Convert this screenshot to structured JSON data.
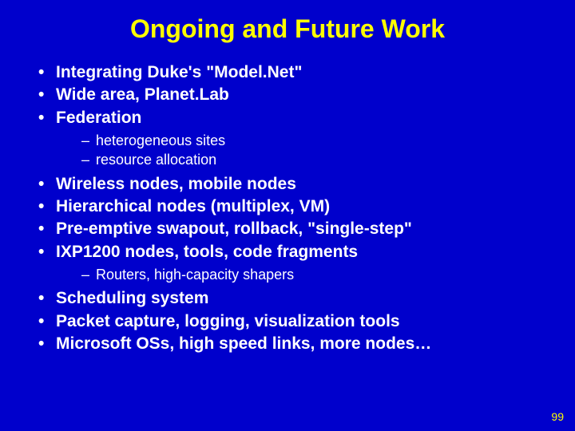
{
  "colors": {
    "background": "#0000cc",
    "title": "#ffff00",
    "body_text": "#ffffff",
    "page_number": "#ffff00"
  },
  "typography": {
    "title_fontsize": 32,
    "title_weight": "bold",
    "level1_fontsize": 21,
    "level1_weight": "bold",
    "level2_fontsize": 18,
    "level2_weight": "normal",
    "pagenum_fontsize": 14,
    "font_family": "Arial"
  },
  "bullets": {
    "level1_char": "•",
    "level2_char": "–"
  },
  "title": "Ongoing and Future Work",
  "items": {
    "i0": "Integrating Duke's \"Model.Net\"",
    "i1": "Wide area, Planet.Lab",
    "i2": "Federation",
    "i2_sub": {
      "s0": "heterogeneous sites",
      "s1": "resource allocation"
    },
    "i3": "Wireless nodes, mobile nodes",
    "i4": "Hierarchical nodes (multiplex, VM)",
    "i5": "Pre-emptive swapout, rollback, \"single-step\"",
    "i6": "IXP1200 nodes, tools, code fragments",
    "i6_sub": {
      "s0": "Routers, high-capacity shapers"
    },
    "i7": "Scheduling system",
    "i8": "Packet capture, logging, visualization tools",
    "i9": "Microsoft OSs, high speed links, more nodes…"
  },
  "page_number": "99"
}
